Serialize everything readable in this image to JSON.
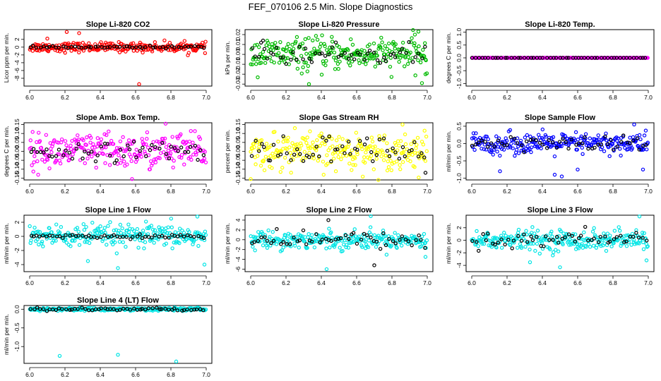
{
  "title": "FEF_070106  2.5 Min. Slope Diagnostics",
  "chart_data": [
    {
      "type": "scatter",
      "title": "Slope Li-820 CO2",
      "ylabel": "Licor ppm per min.",
      "xlim": [
        6.0,
        7.0
      ],
      "xticks": [
        "6.0",
        "6.2",
        "6.4",
        "6.6",
        "6.8",
        "7.0"
      ],
      "ylim": [
        -10,
        4.5
      ],
      "yticks": [
        -8,
        -6,
        -4,
        -2,
        0,
        2
      ],
      "ytick_labels": [
        "-8",
        "-6",
        "-4",
        "-2",
        "0",
        "2"
      ],
      "series": [
        {
          "color": "#ff0000",
          "spread": 0.6,
          "outliers": [
            [
              6.21,
              3.9
            ],
            [
              6.28,
              3.6
            ],
            [
              6.62,
              -9.5
            ],
            [
              6.1,
              2.2
            ]
          ]
        },
        {
          "color": "#000000",
          "spread": 0.15,
          "outliers": []
        }
      ]
    },
    {
      "type": "scatter",
      "title": "Slope Li-820 Pressure",
      "ylabel": "kPa per min.",
      "xlim": [
        6.0,
        7.0
      ],
      "xticks": [
        "6.0",
        "6.2",
        "6.4",
        "6.6",
        "6.8",
        "7.0"
      ],
      "ylim": [
        -0.032,
        0.025
      ],
      "yticks": [
        -0.03,
        -0.02,
        -0.01,
        0,
        0.01,
        0.02
      ],
      "ytick_labels": [
        "-0.03",
        "-0.02",
        "-0.01",
        "0.00",
        "0.01",
        "0.02"
      ],
      "series": [
        {
          "color": "#00bb00",
          "spread": 0.008,
          "outliers": [
            [
              6.33,
              -0.03
            ],
            [
              6.97,
              -0.029
            ],
            [
              6.95,
              0.023
            ],
            [
              6.93,
              0.02
            ],
            [
              6.99,
              -0.02
            ]
          ]
        },
        {
          "color": "#000000",
          "spread": 0.005,
          "outliers": [
            [
              6.07,
              0.014
            ]
          ]
        }
      ]
    },
    {
      "type": "scatter",
      "title": "Slope Li-820 Temp.",
      "ylabel": "degrees C per min.",
      "xlim": [
        6.0,
        7.0
      ],
      "xticks": [
        "6.0",
        "6.2",
        "6.4",
        "6.6",
        "6.8",
        "7.0"
      ],
      "ylim": [
        -1.1,
        1.1
      ],
      "yticks": [
        -1,
        -0.5,
        0,
        0.5,
        1
      ],
      "ytick_labels": [
        "-1.0",
        "-0.5",
        "0.0",
        "0.5",
        "1.0"
      ],
      "series": [
        {
          "color": "#ff00ff",
          "spread": 0,
          "outliers": []
        },
        {
          "color": "#000000",
          "spread": 0,
          "outliers": []
        }
      ]
    },
    {
      "type": "scatter",
      "title": "Slope Amb. Box Temp.",
      "ylabel": "degrees C per min.",
      "xlim": [
        6.0,
        7.0
      ],
      "xticks": [
        "6.0",
        "6.2",
        "6.4",
        "6.6",
        "6.8",
        "7.0"
      ],
      "ylim": [
        -0.16,
        0.16
      ],
      "yticks": [
        -0.15,
        -0.1,
        -0.05,
        0,
        0.05,
        0.1,
        0.15
      ],
      "ytick_labels": [
        "-0.15",
        "-0.10",
        "-0.05",
        "0.00",
        "0.05",
        "0.10",
        "0.15"
      ],
      "series": [
        {
          "color": "#ff00ff",
          "spread": 0.05,
          "outliers": [
            [
              6.58,
              -0.155
            ],
            [
              6.77,
              0.155
            ]
          ]
        },
        {
          "color": "#000000",
          "spread": 0.025,
          "outliers": []
        }
      ]
    },
    {
      "type": "scatter",
      "title": "Slope Gas Stream RH",
      "ylabel": "percent per min.",
      "xlim": [
        6.0,
        7.0
      ],
      "xticks": [
        "6.0",
        "6.2",
        "6.4",
        "6.6",
        "6.8",
        "7.0"
      ],
      "ylim": [
        -0.16,
        0.16
      ],
      "yticks": [
        -0.15,
        -0.1,
        -0.05,
        0,
        0.05,
        0.1,
        0.15
      ],
      "ytick_labels": [
        "-0.15",
        "-0.10",
        "-0.05",
        "0.00",
        "0.05",
        "0.10",
        "0.15"
      ],
      "series": [
        {
          "color": "#ffff00",
          "spread": 0.05,
          "outliers": [
            [
              6.0,
              -0.155
            ],
            [
              6.25,
              0.13
            ],
            [
              6.86,
              0.15
            ]
          ]
        },
        {
          "color": "#000000",
          "spread": 0.045,
          "outliers": [
            [
              6.99,
              -0.12
            ]
          ]
        }
      ]
    },
    {
      "type": "scatter",
      "title": "Slope Sample Flow",
      "ylabel": "ml/min per min.",
      "xlim": [
        6.0,
        7.0
      ],
      "xticks": [
        "6.0",
        "6.2",
        "6.4",
        "6.6",
        "6.8",
        "7.0"
      ],
      "ylim": [
        -1.05,
        0.6
      ],
      "yticks": [
        -1,
        -0.5,
        0,
        0.5
      ],
      "ytick_labels": [
        "-1.0",
        "-0.5",
        "0.0",
        "0.5"
      ],
      "series": [
        {
          "color": "#0000ff",
          "spread": 0.15,
          "outliers": [
            [
              6.16,
              -0.8
            ],
            [
              6.47,
              -0.9
            ],
            [
              6.6,
              -0.75
            ],
            [
              6.92,
              0.55
            ],
            [
              6.97,
              -0.75
            ],
            [
              6.51,
              -0.95
            ]
          ]
        },
        {
          "color": "#000000",
          "spread": 0.12,
          "outliers": []
        }
      ]
    },
    {
      "type": "scatter",
      "title": "Slope Line 1 Flow",
      "ylabel": "ml/min per min.",
      "xlim": [
        6.0,
        7.0
      ],
      "xticks": [
        "6.0",
        "6.2",
        "6.4",
        "6.6",
        "6.8",
        "7.0"
      ],
      "ylim": [
        -5,
        3
      ],
      "yticks": [
        -4,
        -2,
        0,
        2
      ],
      "ytick_labels": [
        "-4",
        "-2",
        "0",
        "2"
      ],
      "series": [
        {
          "color": "#00e5e5",
          "spread": 0.8,
          "outliers": [
            [
              6.5,
              -4.5
            ],
            [
              6.33,
              -3.5
            ],
            [
              6.99,
              -4
            ],
            [
              6.95,
              2.8
            ]
          ]
        },
        {
          "color": "#000000",
          "spread": 0.12,
          "outliers": []
        }
      ]
    },
    {
      "type": "scatter",
      "title": "Slope Line 2 Flow",
      "ylabel": "ml/min per min.",
      "xlim": [
        6.0,
        7.0
      ],
      "xticks": [
        "6.0",
        "6.2",
        "6.4",
        "6.6",
        "6.8",
        "7.0"
      ],
      "ylim": [
        -6.5,
        5
      ],
      "yticks": [
        -6,
        -4,
        -2,
        0,
        2,
        4
      ],
      "ytick_labels": [
        "-6",
        "-4",
        "-2",
        "0",
        "2",
        "4"
      ],
      "series": [
        {
          "color": "#00e5e5",
          "spread": 0.9,
          "outliers": [
            [
              6.43,
              -6
            ],
            [
              6.68,
              4.8
            ],
            [
              6.99,
              -3.5
            ]
          ]
        },
        {
          "color": "#000000",
          "spread": 0.8,
          "outliers": [
            [
              6.44,
              4
            ],
            [
              6.7,
              -5.2
            ]
          ]
        }
      ]
    },
    {
      "type": "scatter",
      "title": "Slope Line 3 Flow",
      "ylabel": "ml/min per min.",
      "xlim": [
        6.0,
        7.0
      ],
      "xticks": [
        "6.0",
        "6.2",
        "6.4",
        "6.6",
        "6.8",
        "7.0"
      ],
      "ylim": [
        -5,
        4
      ],
      "yticks": [
        -4,
        -2,
        0,
        2
      ],
      "ytick_labels": [
        "-4",
        "-2",
        "0",
        "2"
      ],
      "series": [
        {
          "color": "#00e5e5",
          "spread": 0.8,
          "outliers": [
            [
              6.5,
              -4.3
            ],
            [
              6.33,
              -3.5
            ],
            [
              6.95,
              3.8
            ],
            [
              6.99,
              -3.2
            ]
          ]
        },
        {
          "color": "#000000",
          "spread": 0.6,
          "outliers": []
        }
      ]
    },
    {
      "type": "scatter",
      "title": "Slope Line 4 (LT) Flow",
      "ylabel": "ml/min per min.",
      "xlim": [
        6.0,
        7.0
      ],
      "xticks": [
        "6.0",
        "6.2",
        "6.4",
        "6.6",
        "6.8",
        "7.0"
      ],
      "ylim": [
        -1.45,
        0.1
      ],
      "yticks": [
        -1,
        -0.5,
        0
      ],
      "ytick_labels": [
        "-1.0",
        "-0.5",
        "0.0"
      ],
      "series": [
        {
          "color": "#00e5e5",
          "spread": 0.02,
          "outliers": [
            [
              6.17,
              -1.25
            ],
            [
              6.5,
              -1.22
            ],
            [
              6.83,
              -1.4
            ]
          ]
        },
        {
          "color": "#000000",
          "spread": 0.02,
          "outliers": []
        }
      ]
    }
  ]
}
